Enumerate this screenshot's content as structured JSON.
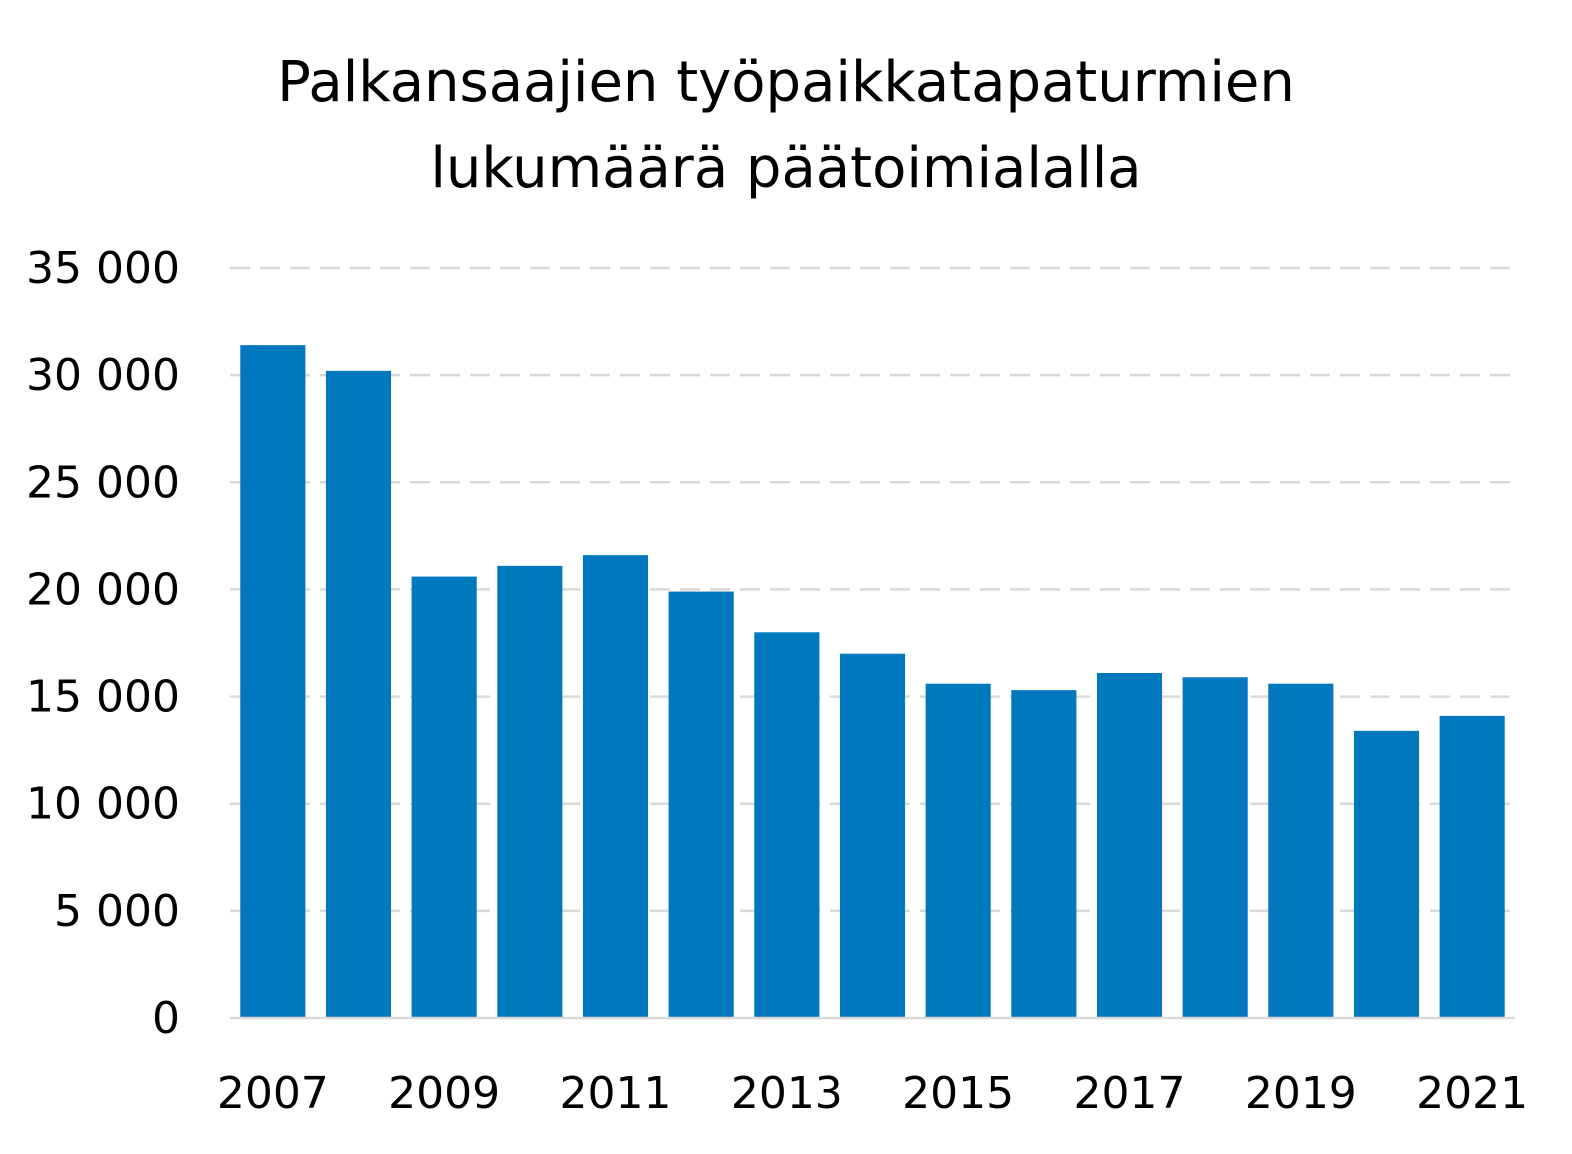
{
  "chart_data": {
    "type": "bar",
    "title_lines": [
      "Palkansaajien työpaikkatapaturmien",
      "lukumäärä päätoimialalla"
    ],
    "xlabel": "",
    "ylabel": "",
    "categories": [
      "2007",
      "2008",
      "2009",
      "2010",
      "2011",
      "2012",
      "2013",
      "2014",
      "2015",
      "2016",
      "2017",
      "2018",
      "2019",
      "2020",
      "2021"
    ],
    "x_tick_labels": [
      "2007",
      "",
      "2009",
      "",
      "2011",
      "",
      "2013",
      "",
      "2015",
      "",
      "2017",
      "",
      "2019",
      "",
      "2021"
    ],
    "values": [
      31400,
      30200,
      20600,
      21100,
      21600,
      19900,
      18000,
      17000,
      15600,
      15300,
      16100,
      15900,
      15600,
      13400,
      14100
    ],
    "ylim": [
      0,
      35000
    ],
    "y_ticks": [
      0,
      5000,
      10000,
      15000,
      20000,
      25000,
      30000,
      35000
    ],
    "y_tick_labels": [
      "0",
      "5 000",
      "10 000",
      "15 000",
      "20 000",
      "25 000",
      "30 000",
      "35 000"
    ],
    "grid": "horizontal dashed",
    "legend": "none",
    "colors": {
      "bar": "#0078BE",
      "grid": "#D9D9D9",
      "axis": "#D9D9D9"
    }
  }
}
